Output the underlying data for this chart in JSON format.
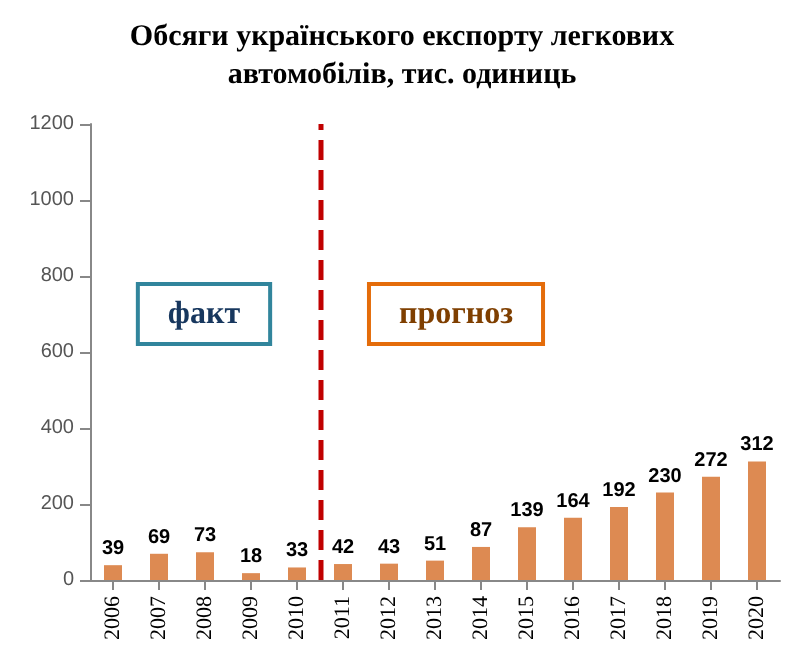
{
  "chart_data": {
    "type": "bar",
    "title": "Обсяги українського експорту легкових\nавтомобілів, тис. одиниць",
    "x": [
      2006,
      2007,
      2008,
      2009,
      2010,
      2011,
      2012,
      2013,
      2014,
      2015,
      2016,
      2017,
      2018,
      2019,
      2020
    ],
    "values": [
      39,
      69,
      73,
      18,
      33,
      42,
      43,
      51,
      87,
      139,
      164,
      192,
      230,
      272,
      312
    ],
    "color": "#dd8a52",
    "xlim": [
      2005.5,
      2020.5
    ],
    "xticks": [
      2006,
      2007,
      2008,
      2009,
      2010,
      2011,
      2012,
      2013,
      2014,
      2015,
      2016,
      2017,
      2018,
      2019,
      2020
    ],
    "ylim": [
      0,
      1200
    ],
    "yticks": [
      0,
      200,
      400,
      600,
      800,
      1000,
      1200
    ],
    "data_labels": true,
    "ref_lines": [
      {
        "axis": "x",
        "value": 2010.5,
        "color": "#c00000",
        "line_style": "dashed"
      }
    ],
    "annotations": [
      "факт",
      "прогноз"
    ]
  }
}
